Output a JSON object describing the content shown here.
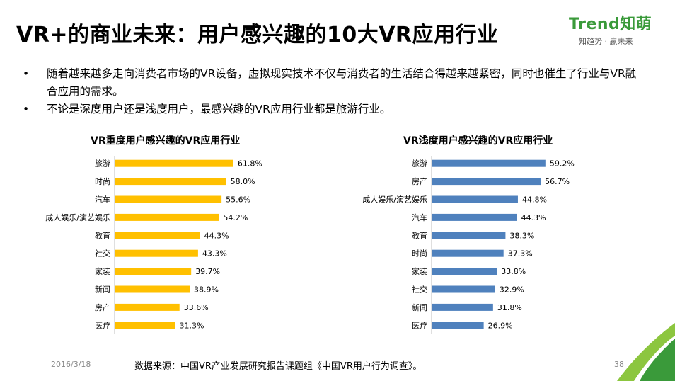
{
  "title": "VR+的商业未来：用户感兴趣的10大VR应用行业",
  "logo": {
    "text": "Trend知萌",
    "tagline": "知趋势 · 赢未来",
    "color": "#3a9a3a"
  },
  "bullets": [
    {
      "marker": "•",
      "text": "随着越来越多走向消费者市场的VR设备，虚拟现实技术不仅与消费者的生活结合得越来越紧密，同时也催生了行业与VR融合应用的需求。"
    },
    {
      "marker": "•",
      "text": "不论是深度用户还是浅度用户，最感兴趣的VR应用行业都是旅游行业。"
    }
  ],
  "footer": {
    "date": "2016/3/18",
    "source": "数据来源：中国VR产业发展研究报告课题组《中国VR用户行为调查》。",
    "page": "38"
  },
  "chart_data": [
    {
      "type": "bar",
      "orientation": "horizontal",
      "title": "VR重度用户感兴趣的VR应用行业",
      "color": "#FFC000",
      "categories": [
        "旅游",
        "时尚",
        "汽车",
        "成人娱乐/演艺娱乐",
        "教育",
        "社交",
        "家装",
        "新闻",
        "房产",
        "医疗"
      ],
      "values": [
        61.8,
        58.0,
        55.6,
        54.2,
        44.3,
        43.3,
        39.7,
        38.9,
        33.6,
        31.3
      ],
      "labels": [
        "61.8%",
        "58.0%",
        "55.6%",
        "54.2%",
        "44.3%",
        "43.3%",
        "39.7%",
        "38.9%",
        "33.6%",
        "31.3%"
      ],
      "xlim": [
        0,
        100
      ],
      "grid": false,
      "legend": "none"
    },
    {
      "type": "bar",
      "orientation": "horizontal",
      "title": "VR浅度用户感兴趣的VR应用行业",
      "color": "#4F81BD",
      "categories": [
        "旅游",
        "房产",
        "成人娱乐/演艺娱乐",
        "汽车",
        "教育",
        "时尚",
        "家装",
        "社交",
        "新闻",
        "医疗"
      ],
      "values": [
        59.2,
        56.7,
        44.8,
        44.3,
        38.3,
        37.3,
        33.8,
        32.9,
        31.8,
        26.9
      ],
      "labels": [
        "59.2%",
        "56.7%",
        "44.8%",
        "44.3%",
        "38.3%",
        "37.3%",
        "33.8%",
        "32.9%",
        "31.8%",
        "26.9%"
      ],
      "xlim": [
        0,
        100
      ],
      "grid": false,
      "legend": "none"
    }
  ]
}
